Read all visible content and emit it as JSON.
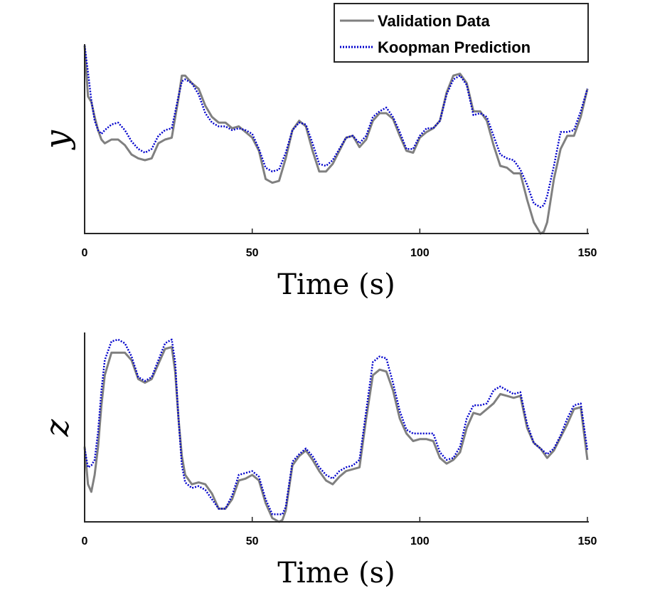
{
  "legend": {
    "position": "top-right",
    "entries": [
      {
        "label": "Validation Data",
        "color": "#808080",
        "style": "solid"
      },
      {
        "label": "Koopman Prediction",
        "color": "#0000cc",
        "style": "dotted"
      }
    ]
  },
  "chart_data": [
    {
      "type": "line",
      "xlabel": "Time (s)",
      "ylabel": "y",
      "xlim": [
        0,
        150
      ],
      "ylim": [
        0,
        1
      ],
      "xticks": [
        0,
        50,
        100,
        150
      ],
      "xtick_labels": [
        "0",
        "50",
        "100",
        "150"
      ],
      "yticks": [],
      "grid": false,
      "legend": "top-right",
      "series": [
        {
          "name": "Validation Data",
          "color": "#808080",
          "x": [
            0,
            1,
            2,
            3,
            4,
            5,
            6,
            8,
            10,
            12,
            14,
            16,
            18,
            20,
            22,
            24,
            26,
            28,
            29,
            30,
            32,
            34,
            36,
            38,
            40,
            42,
            44,
            46,
            48,
            50,
            52,
            54,
            56,
            58,
            60,
            62,
            64,
            66,
            68,
            70,
            72,
            74,
            76,
            78,
            80,
            82,
            84,
            86,
            88,
            90,
            92,
            94,
            96,
            98,
            100,
            102,
            104,
            106,
            108,
            110,
            112,
            114,
            116,
            118,
            120,
            122,
            124,
            126,
            128,
            130,
            132,
            134,
            136,
            137,
            138,
            140,
            142,
            144,
            146,
            148,
            150
          ],
          "values": [
            1.0,
            0.73,
            0.7,
            0.62,
            0.55,
            0.5,
            0.48,
            0.5,
            0.5,
            0.47,
            0.42,
            0.4,
            0.39,
            0.4,
            0.48,
            0.5,
            0.51,
            0.72,
            0.84,
            0.84,
            0.8,
            0.77,
            0.68,
            0.62,
            0.59,
            0.59,
            0.56,
            0.57,
            0.54,
            0.51,
            0.44,
            0.29,
            0.27,
            0.28,
            0.4,
            0.55,
            0.6,
            0.57,
            0.44,
            0.33,
            0.33,
            0.37,
            0.44,
            0.51,
            0.52,
            0.46,
            0.5,
            0.6,
            0.64,
            0.64,
            0.61,
            0.52,
            0.44,
            0.43,
            0.51,
            0.54,
            0.56,
            0.6,
            0.75,
            0.84,
            0.85,
            0.8,
            0.65,
            0.65,
            0.6,
            0.47,
            0.36,
            0.35,
            0.32,
            0.32,
            0.18,
            0.06,
            0.0,
            0.01,
            0.06,
            0.29,
            0.45,
            0.52,
            0.52,
            0.62,
            0.77
          ]
        },
        {
          "name": "Koopman Prediction",
          "color": "#0000cc",
          "x": [
            0,
            1,
            2,
            3,
            4,
            5,
            6,
            8,
            10,
            12,
            14,
            16,
            18,
            20,
            22,
            24,
            26,
            28,
            29,
            30,
            32,
            34,
            36,
            38,
            40,
            42,
            44,
            46,
            48,
            50,
            52,
            54,
            56,
            58,
            60,
            62,
            64,
            66,
            68,
            70,
            72,
            74,
            76,
            78,
            80,
            82,
            84,
            86,
            88,
            90,
            92,
            94,
            96,
            98,
            100,
            102,
            104,
            106,
            108,
            110,
            112,
            114,
            116,
            118,
            120,
            122,
            124,
            126,
            128,
            130,
            132,
            134,
            136,
            137,
            138,
            140,
            142,
            144,
            146,
            148,
            150
          ],
          "values": [
            1.0,
            0.86,
            0.71,
            0.6,
            0.55,
            0.53,
            0.55,
            0.58,
            0.59,
            0.55,
            0.49,
            0.45,
            0.43,
            0.45,
            0.52,
            0.55,
            0.56,
            0.73,
            0.81,
            0.82,
            0.8,
            0.74,
            0.64,
            0.59,
            0.57,
            0.57,
            0.55,
            0.56,
            0.55,
            0.53,
            0.45,
            0.35,
            0.33,
            0.34,
            0.43,
            0.55,
            0.59,
            0.58,
            0.48,
            0.37,
            0.36,
            0.39,
            0.45,
            0.51,
            0.52,
            0.48,
            0.52,
            0.62,
            0.65,
            0.67,
            0.62,
            0.54,
            0.45,
            0.45,
            0.52,
            0.56,
            0.56,
            0.6,
            0.74,
            0.82,
            0.84,
            0.79,
            0.63,
            0.64,
            0.62,
            0.52,
            0.42,
            0.4,
            0.39,
            0.34,
            0.26,
            0.16,
            0.14,
            0.15,
            0.2,
            0.36,
            0.54,
            0.54,
            0.55,
            0.65,
            0.77
          ]
        }
      ]
    },
    {
      "type": "line",
      "xlabel": "Time (s)",
      "ylabel": "z",
      "xlim": [
        0,
        150
      ],
      "ylim": [
        0,
        1
      ],
      "xticks": [
        0,
        50,
        100,
        150
      ],
      "xtick_labels": [
        "0",
        "50",
        "100",
        "150"
      ],
      "yticks": [],
      "grid": false,
      "series": [
        {
          "name": "Validation Data",
          "color": "#808080",
          "x": [
            0,
            1,
            2,
            3,
            4,
            5,
            6,
            8,
            10,
            12,
            14,
            16,
            18,
            20,
            22,
            24,
            26,
            27,
            28,
            29,
            30,
            32,
            34,
            36,
            38,
            40,
            42,
            44,
            46,
            48,
            50,
            52,
            54,
            56,
            58,
            59,
            60,
            62,
            64,
            66,
            68,
            70,
            72,
            74,
            76,
            78,
            80,
            82,
            84,
            86,
            88,
            90,
            92,
            94,
            96,
            98,
            100,
            102,
            104,
            106,
            108,
            110,
            112,
            114,
            116,
            118,
            120,
            122,
            124,
            126,
            128,
            130,
            132,
            134,
            136,
            138,
            140,
            142,
            144,
            146,
            148,
            150
          ],
          "values": [
            0.4,
            0.2,
            0.16,
            0.25,
            0.4,
            0.62,
            0.78,
            0.9,
            0.9,
            0.9,
            0.86,
            0.76,
            0.74,
            0.76,
            0.84,
            0.92,
            0.93,
            0.8,
            0.55,
            0.35,
            0.25,
            0.2,
            0.21,
            0.2,
            0.15,
            0.07,
            0.07,
            0.12,
            0.22,
            0.23,
            0.25,
            0.22,
            0.1,
            0.02,
            0.0,
            0.01,
            0.06,
            0.3,
            0.35,
            0.38,
            0.33,
            0.27,
            0.22,
            0.2,
            0.24,
            0.27,
            0.28,
            0.29,
            0.55,
            0.78,
            0.81,
            0.8,
            0.7,
            0.55,
            0.47,
            0.43,
            0.44,
            0.44,
            0.43,
            0.34,
            0.31,
            0.33,
            0.37,
            0.5,
            0.58,
            0.57,
            0.6,
            0.63,
            0.68,
            0.67,
            0.66,
            0.67,
            0.5,
            0.42,
            0.39,
            0.34,
            0.38,
            0.45,
            0.52,
            0.6,
            0.61,
            0.33
          ]
        },
        {
          "name": "Koopman Prediction",
          "color": "#0000cc",
          "x": [
            0,
            1,
            2,
            3,
            4,
            5,
            6,
            8,
            10,
            12,
            14,
            16,
            18,
            20,
            22,
            24,
            26,
            27,
            28,
            29,
            30,
            32,
            34,
            36,
            38,
            40,
            42,
            44,
            46,
            48,
            50,
            52,
            54,
            56,
            58,
            59,
            60,
            62,
            64,
            66,
            68,
            70,
            72,
            74,
            76,
            78,
            80,
            82,
            84,
            86,
            88,
            90,
            92,
            94,
            96,
            98,
            100,
            102,
            104,
            106,
            108,
            110,
            112,
            114,
            116,
            118,
            120,
            122,
            124,
            126,
            128,
            130,
            132,
            134,
            136,
            138,
            140,
            142,
            144,
            146,
            148,
            150
          ],
          "values": [
            0.39,
            0.29,
            0.3,
            0.33,
            0.48,
            0.7,
            0.86,
            0.96,
            0.97,
            0.95,
            0.88,
            0.77,
            0.75,
            0.77,
            0.86,
            0.95,
            0.97,
            0.85,
            0.55,
            0.3,
            0.21,
            0.18,
            0.19,
            0.17,
            0.12,
            0.07,
            0.07,
            0.14,
            0.25,
            0.26,
            0.27,
            0.24,
            0.12,
            0.04,
            0.04,
            0.04,
            0.08,
            0.32,
            0.36,
            0.39,
            0.35,
            0.29,
            0.25,
            0.23,
            0.27,
            0.29,
            0.3,
            0.33,
            0.59,
            0.85,
            0.88,
            0.87,
            0.74,
            0.59,
            0.49,
            0.47,
            0.47,
            0.47,
            0.47,
            0.37,
            0.33,
            0.34,
            0.4,
            0.55,
            0.62,
            0.62,
            0.63,
            0.7,
            0.72,
            0.7,
            0.68,
            0.69,
            0.52,
            0.42,
            0.39,
            0.36,
            0.39,
            0.46,
            0.55,
            0.62,
            0.63,
            0.38
          ]
        }
      ]
    }
  ]
}
